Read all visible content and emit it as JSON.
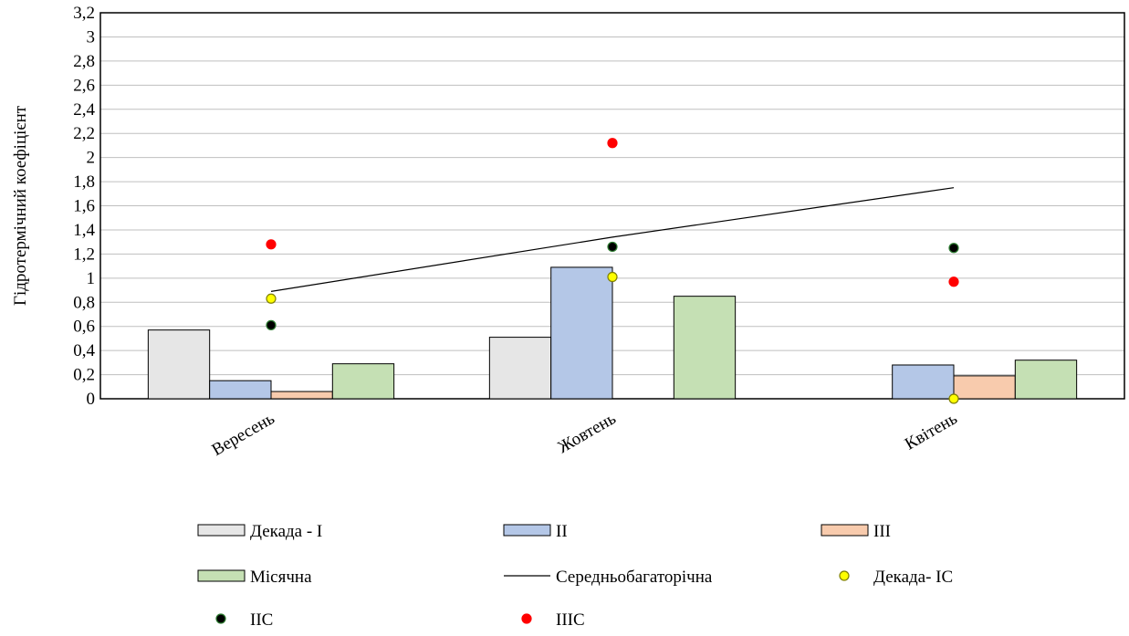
{
  "chart_data": {
    "type": "bar",
    "ylabel": "Гідротермічний коефіцієнт",
    "xlabel": "",
    "ylim": [
      0,
      3.2
    ],
    "ytick_step": 0.2,
    "ytick_labels": [
      "0",
      "0,2",
      "0,4",
      "0,6",
      "0,8",
      "1",
      "1,2",
      "1,4",
      "1,6",
      "1,8",
      "2",
      "2,2",
      "2,4",
      "2,6",
      "2,8",
      "3",
      "3,2"
    ],
    "grid": true,
    "legend_position": "bottom",
    "categories": [
      "Вересень",
      "Жовтень",
      "Квітень"
    ],
    "bar_series": [
      {
        "name": "Декада - I",
        "values": [
          0.57,
          0.51,
          0.0
        ],
        "color": "#e6e6e6"
      },
      {
        "name": "II",
        "values": [
          0.15,
          1.09,
          0.28
        ],
        "color": "#b4c7e7"
      },
      {
        "name": "III",
        "values": [
          0.06,
          0.0,
          0.19
        ],
        "color": "#f8cbad"
      },
      {
        "name": "Місячна",
        "values": [
          0.29,
          0.85,
          0.32
        ],
        "color": "#c5e0b4"
      }
    ],
    "line_series": [
      {
        "name": "Середньобагаторічна",
        "values": [
          0.89,
          1.34,
          1.75
        ],
        "color": "#000000"
      }
    ],
    "point_series": [
      {
        "name": "Декада- IC",
        "values": [
          0.83,
          1.01,
          0.0
        ],
        "color": "#ffff00",
        "edge": "#7f7f00"
      },
      {
        "name": "IIC",
        "values": [
          0.61,
          1.26,
          1.25
        ],
        "color": "#000000",
        "edge": "#2e7d32"
      },
      {
        "name": "IIIC",
        "values": [
          1.28,
          2.12,
          0.97
        ],
        "color": "#ff0000",
        "edge": "#ff0000"
      }
    ]
  }
}
